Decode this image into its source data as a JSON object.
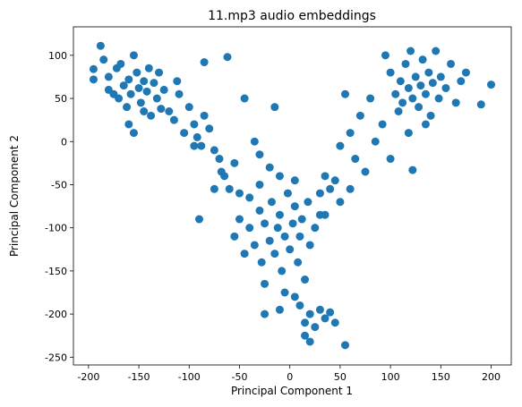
{
  "chart_data": {
    "type": "scatter",
    "title": "11.mp3 audio embeddings",
    "xlabel": "Principal Component 1",
    "ylabel": "Principal Component 2",
    "xlim": [
      -215,
      220
    ],
    "ylim": [
      -259,
      133
    ],
    "xticks": [
      -200,
      -150,
      -100,
      -50,
      0,
      50,
      100,
      150,
      200
    ],
    "yticks": [
      -250,
      -200,
      -150,
      -100,
      -50,
      0,
      50,
      100
    ],
    "color": "#1f77b4",
    "x": [
      -195,
      -195,
      -188,
      -185,
      -180,
      -175,
      -172,
      -168,
      -165,
      -162,
      -160,
      -158,
      -155,
      -152,
      -150,
      -148,
      -145,
      -142,
      -140,
      -138,
      -135,
      -132,
      -130,
      -128,
      -125,
      -160,
      -155,
      -145,
      -170,
      -180,
      -120,
      -115,
      -110,
      -105,
      -100,
      -95,
      -92,
      -88,
      -85,
      -80,
      -75,
      -70,
      -65,
      -60,
      -90,
      -75,
      -55,
      -50,
      -85,
      -62,
      -45,
      -112,
      -95,
      -68,
      95,
      100,
      105,
      108,
      110,
      112,
      115,
      118,
      120,
      122,
      125,
      128,
      130,
      132,
      135,
      138,
      140,
      142,
      145,
      148,
      150,
      155,
      160,
      165,
      170,
      175,
      190,
      200,
      122,
      100,
      92,
      80,
      85,
      118,
      135,
      70,
      60,
      55,
      65,
      50,
      45,
      40,
      35,
      30,
      50,
      35,
      60,
      75,
      -15,
      -35,
      -30,
      -20,
      -10,
      -55,
      -50,
      -45,
      -40,
      -35,
      -30,
      -28,
      -25,
      -20,
      -18,
      -15,
      -12,
      -10,
      -8,
      -5,
      -2,
      0,
      3,
      5,
      8,
      10,
      12,
      15,
      18,
      20,
      25,
      30,
      -25,
      -5,
      5,
      -25,
      -10,
      10,
      15,
      20,
      25,
      30,
      35,
      40,
      45,
      20,
      15,
      55,
      -30,
      -40,
      5
    ],
    "values": [
      84,
      72,
      111,
      95,
      75,
      55,
      85,
      90,
      65,
      40,
      72,
      55,
      100,
      80,
      62,
      45,
      70,
      58,
      85,
      30,
      68,
      50,
      80,
      38,
      60,
      20,
      10,
      35,
      50,
      60,
      35,
      25,
      55,
      10,
      40,
      20,
      5,
      -5,
      30,
      15,
      -10,
      -20,
      -40,
      -55,
      -90,
      -55,
      -25,
      -60,
      92,
      98,
      50,
      70,
      -5,
      -35,
      100,
      80,
      55,
      35,
      70,
      45,
      90,
      62,
      105,
      50,
      75,
      40,
      65,
      95,
      55,
      80,
      30,
      68,
      105,
      50,
      75,
      62,
      90,
      45,
      70,
      80,
      43,
      66,
      -33,
      -20,
      20,
      50,
      0,
      10,
      20,
      30,
      10,
      55,
      -20,
      -5,
      -45,
      -55,
      -40,
      -60,
      -70,
      -85,
      -55,
      -35,
      40,
      0,
      -15,
      -30,
      -40,
      -110,
      -90,
      -130,
      -100,
      -120,
      -80,
      -140,
      -95,
      -115,
      -70,
      -130,
      -100,
      -85,
      -150,
      -110,
      -60,
      -125,
      -95,
      -75,
      -140,
      -110,
      -90,
      -160,
      -70,
      -120,
      -100,
      -85,
      -165,
      -175,
      -180,
      -200,
      -195,
      -190,
      -210,
      -200,
      -215,
      -195,
      -205,
      -198,
      -210,
      -232,
      -225,
      -236,
      -50,
      -65,
      -45
    ]
  }
}
